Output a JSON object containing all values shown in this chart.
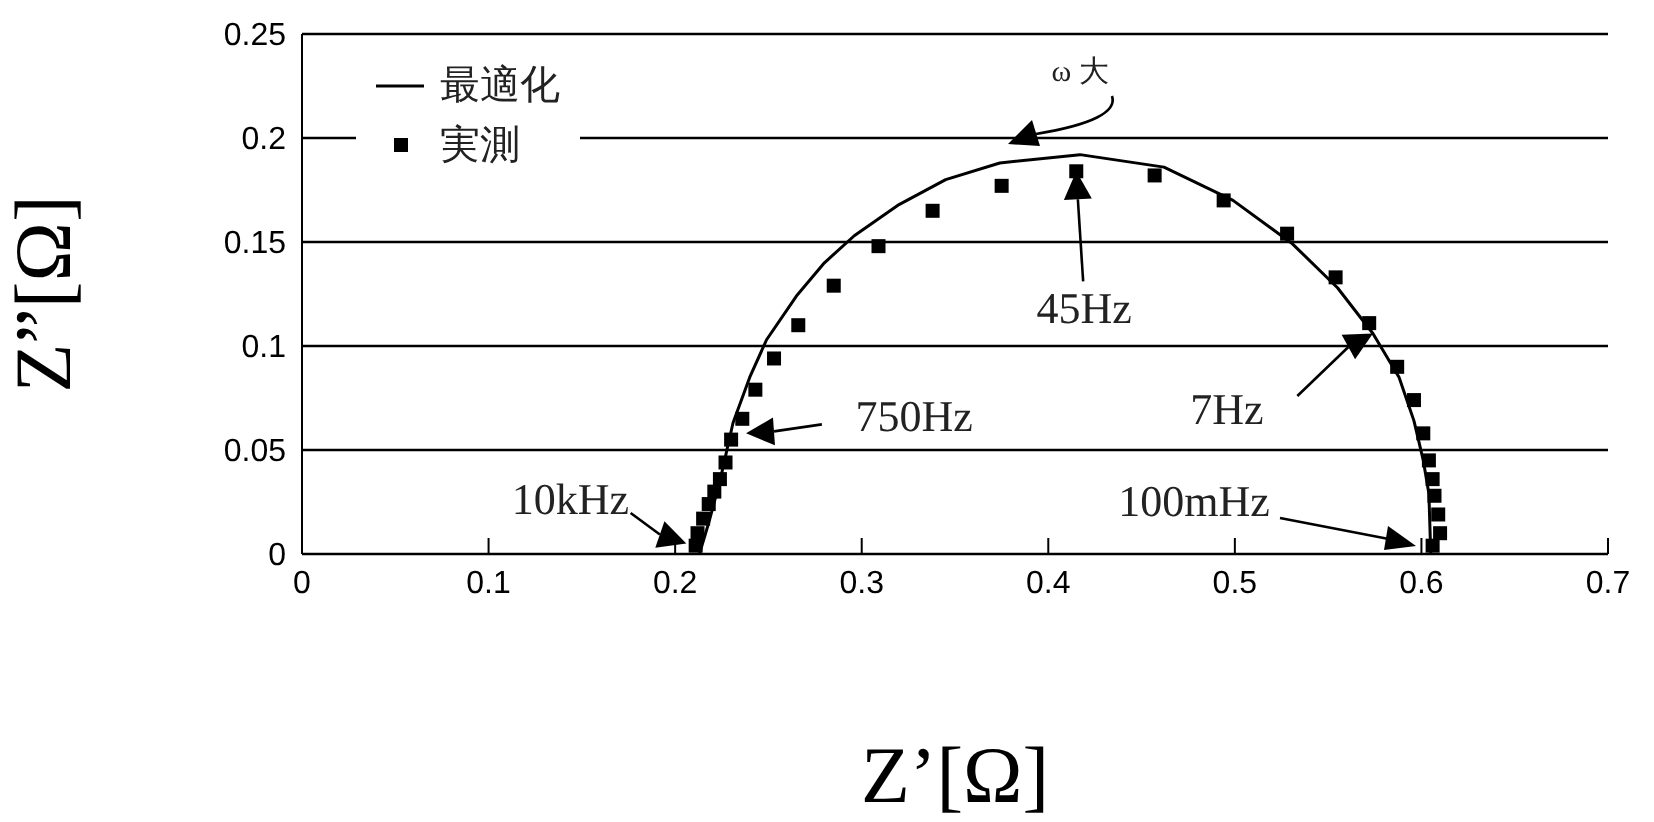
{
  "chart_data": {
    "type": "scatter",
    "xlabel": "Z’[Ω]",
    "ylabel": "Z”[Ω]",
    "xlim": [
      0,
      0.7
    ],
    "xticks": [
      0,
      0.1,
      0.2,
      0.3,
      0.4,
      0.5,
      0.6,
      0.7
    ],
    "ylim": [
      0,
      0.25
    ],
    "yticks": [
      0,
      0.05,
      0.1,
      0.15,
      0.2,
      0.25
    ],
    "grid": "y",
    "legend": "top left",
    "series": [
      {
        "name": "最適化",
        "type": "line",
        "color": "#000000",
        "line_style": "solid",
        "x": [
          0.213,
          0.218,
          0.224,
          0.231,
          0.24,
          0.249,
          0.265,
          0.28,
          0.296,
          0.32,
          0.345,
          0.374,
          0.417,
          0.462,
          0.499,
          0.531,
          0.555,
          0.574,
          0.588,
          0.596,
          0.601,
          0.604,
          0.605
        ],
        "values": [
          0,
          0.015,
          0.035,
          0.063,
          0.085,
          0.103,
          0.124,
          0.14,
          0.153,
          0.168,
          0.18,
          0.188,
          0.192,
          0.186,
          0.17,
          0.149,
          0.128,
          0.106,
          0.085,
          0.064,
          0.045,
          0.029,
          0
        ]
      },
      {
        "name": "実測",
        "marker": "square",
        "color": "#000000",
        "x": [
          0.211,
          0.212,
          0.215,
          0.218,
          0.221,
          0.224,
          0.227,
          0.23,
          0.236,
          0.243,
          0.253,
          0.266,
          0.285,
          0.309,
          0.338,
          0.375,
          0.415,
          0.457,
          0.494,
          0.528,
          0.554,
          0.572,
          0.587,
          0.596,
          0.601,
          0.604,
          0.606,
          0.607,
          0.609,
          0.61,
          0.606
        ],
        "values": [
          0.004,
          0.01,
          0.017,
          0.024,
          0.03,
          0.036,
          0.044,
          0.055,
          0.065,
          0.079,
          0.094,
          0.11,
          0.129,
          0.148,
          0.165,
          0.177,
          0.184,
          0.182,
          0.17,
          0.154,
          0.133,
          0.111,
          0.09,
          0.074,
          0.058,
          0.045,
          0.036,
          0.028,
          0.019,
          0.01,
          0.004
        ]
      }
    ],
    "annotations": [
      {
        "text": "10kHz",
        "x": 0.206,
        "y": 0.005
      },
      {
        "text": "750Hz",
        "x": 0.238,
        "y": 0.058
      },
      {
        "text": "45Hz",
        "x": 0.415,
        "y": 0.184
      },
      {
        "text": "7Hz",
        "x": 0.574,
        "y": 0.106
      },
      "100mHz",
      "ω 大"
    ]
  }
}
